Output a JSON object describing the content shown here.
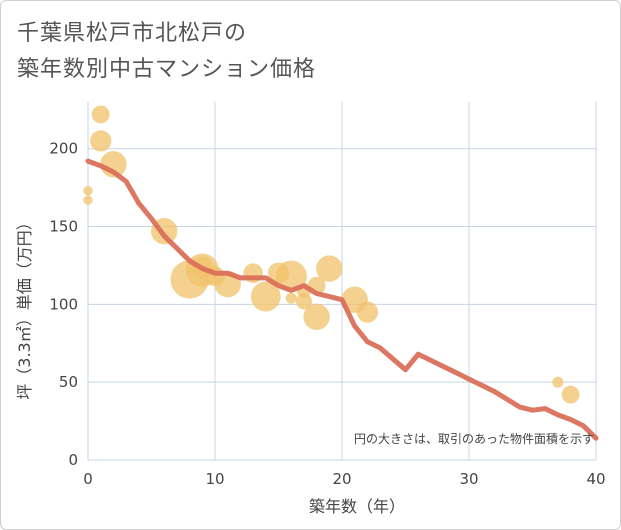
{
  "title_line1": "千葉県松戸市北松戸の",
  "title_line2": "築年数別中古マンション価格",
  "chart_data": {
    "type": "scatter",
    "title": "千葉県松戸市北松戸の築年数別中古マンション価格",
    "xlabel": "築年数（年）",
    "ylabel": "坪（3.3㎡）単価（万円）",
    "xlim": [
      0,
      40
    ],
    "ylim": [
      0,
      230
    ],
    "xticks": [
      0,
      10,
      20,
      30,
      40
    ],
    "yticks": [
      0,
      50,
      100,
      150,
      200
    ],
    "grid": true,
    "annotation": "円の大きさは、取引のあった物件面積を示す",
    "colors": {
      "bubble": "#f2c26b",
      "line": "#d9705a",
      "grid": "#c8d4e3",
      "text": "#444444"
    },
    "series": [
      {
        "kind": "bubble",
        "points": [
          {
            "x": 0,
            "y": 173,
            "size": 0.1
          },
          {
            "x": 0,
            "y": 167,
            "size": 0.1
          },
          {
            "x": 1,
            "y": 222,
            "size": 0.35
          },
          {
            "x": 1,
            "y": 205,
            "size": 0.45
          },
          {
            "x": 2,
            "y": 190,
            "size": 0.6
          },
          {
            "x": 6,
            "y": 147,
            "size": 0.6
          },
          {
            "x": 8,
            "y": 116,
            "size": 0.95
          },
          {
            "x": 9,
            "y": 122,
            "size": 0.8
          },
          {
            "x": 9,
            "y": 124,
            "size": 0.45
          },
          {
            "x": 10,
            "y": 118,
            "size": 0.4
          },
          {
            "x": 11,
            "y": 113,
            "size": 0.6
          },
          {
            "x": 13,
            "y": 120,
            "size": 0.4
          },
          {
            "x": 14,
            "y": 105,
            "size": 0.7
          },
          {
            "x": 15,
            "y": 120,
            "size": 0.45
          },
          {
            "x": 16,
            "y": 118,
            "size": 0.75
          },
          {
            "x": 16,
            "y": 104,
            "size": 0.15
          },
          {
            "x": 17,
            "y": 102,
            "size": 0.3
          },
          {
            "x": 17,
            "y": 109,
            "size": 0.25
          },
          {
            "x": 18,
            "y": 112,
            "size": 0.35
          },
          {
            "x": 18,
            "y": 92,
            "size": 0.6
          },
          {
            "x": 19,
            "y": 123,
            "size": 0.6
          },
          {
            "x": 21,
            "y": 103,
            "size": 0.6
          },
          {
            "x": 22,
            "y": 95,
            "size": 0.45
          },
          {
            "x": 37,
            "y": 50,
            "size": 0.15
          },
          {
            "x": 38,
            "y": 42,
            "size": 0.35
          }
        ]
      },
      {
        "kind": "line",
        "x": [
          0,
          1,
          2,
          3,
          4,
          5,
          6,
          7,
          8,
          9,
          10,
          11,
          12,
          13,
          14,
          15,
          16,
          17,
          18,
          19,
          20,
          21,
          22,
          23,
          24,
          25,
          26,
          27,
          28,
          29,
          30,
          31,
          32,
          33,
          34,
          35,
          36,
          37,
          38,
          39,
          40
        ],
        "y": [
          192,
          189,
          185,
          179,
          165,
          155,
          144,
          136,
          128,
          123,
          120,
          120,
          117,
          117,
          117,
          112,
          109,
          112,
          107,
          105,
          103,
          86,
          76,
          72,
          65,
          58,
          68,
          64,
          60,
          56,
          52,
          48,
          44,
          39,
          34,
          32,
          33,
          29,
          26,
          22,
          14
        ]
      }
    ]
  }
}
